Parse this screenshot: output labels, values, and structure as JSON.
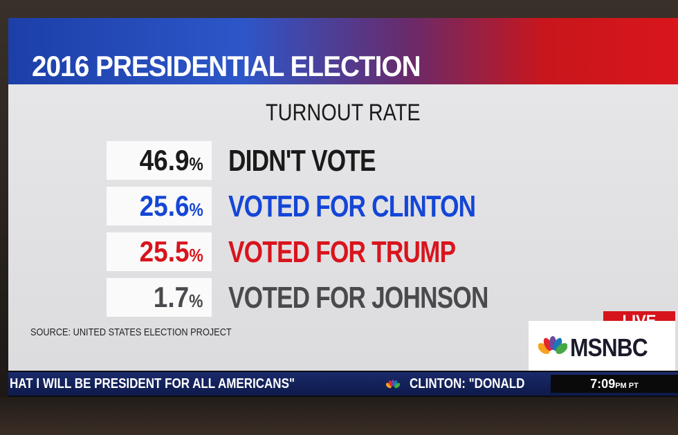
{
  "header": {
    "title": "2016 PRESIDENTIAL ELECTION"
  },
  "panel": {
    "subtitle": "TURNOUT RATE",
    "rows": [
      {
        "value": "46.9",
        "unit": "%",
        "label": "DIDN'T VOTE",
        "color": "#1a1a1a"
      },
      {
        "value": "25.6",
        "unit": "%",
        "label": "VOTED FOR CLINTON",
        "color": "#1446d6"
      },
      {
        "value": "25.5",
        "unit": "%",
        "label": "VOTED FOR TRUMP",
        "color": "#d8141c"
      },
      {
        "value": "1.7",
        "unit": "%",
        "label": "VOTED FOR JOHNSON",
        "color": "#4a4a4e"
      }
    ],
    "source": "SOURCE: UNITED STATES ELECTION PROJECT"
  },
  "branding": {
    "live": "LIVE",
    "network": "MSNBC",
    "icon": "peacock-icon"
  },
  "ticker": {
    "text_left": "HAT I WILL BE PRESIDENT FOR ALL AMERICANS\"",
    "text_right": "CLINTON: \"DONALD",
    "time": "7:09",
    "time_suffix": "PM PT"
  }
}
